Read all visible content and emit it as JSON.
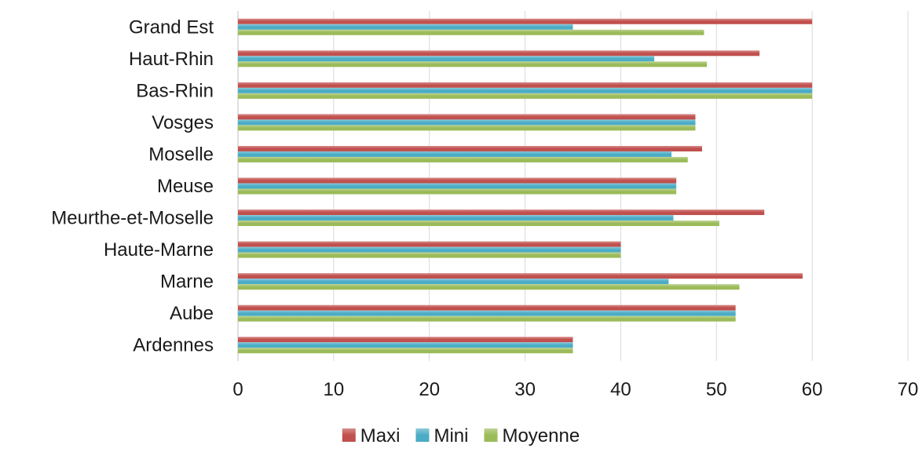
{
  "chart_data": {
    "type": "bar",
    "orientation": "horizontal",
    "categories": [
      "Ardennes",
      "Aube",
      "Marne",
      "Haute-Marne",
      "Meurthe-et-Moselle",
      "Meuse",
      "Moselle",
      "Vosges",
      "Bas-Rhin",
      "Haut-Rhin",
      "Grand Est"
    ],
    "series": [
      {
        "name": "Maxi",
        "color": "#c0504d",
        "values": [
          35,
          52,
          59,
          40,
          55,
          45.8,
          48.5,
          47.8,
          60,
          54.5,
          60
        ]
      },
      {
        "name": "Mini",
        "color": "#4bacc6",
        "values": [
          35,
          52,
          45,
          40,
          45.5,
          45.8,
          45.3,
          47.8,
          60,
          43.5,
          35
        ]
      },
      {
        "name": "Moyenne",
        "color": "#9bbb59",
        "values": [
          35,
          52,
          52.4,
          40,
          50.3,
          45.8,
          47,
          47.8,
          60,
          49,
          48.7
        ]
      }
    ],
    "xlim": [
      0,
      70
    ],
    "xticks": [
      "0",
      "10",
      "20",
      "30",
      "40",
      "50",
      "60",
      "70"
    ],
    "title": "",
    "xlabel": "",
    "ylabel": "",
    "grid": "vertical",
    "legend": "bottom"
  }
}
